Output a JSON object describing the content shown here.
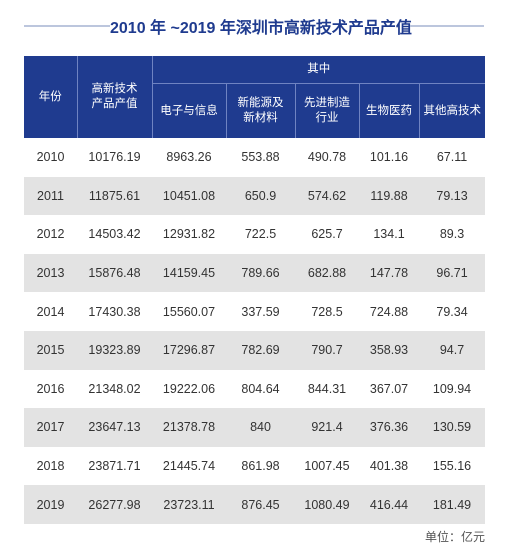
{
  "title": "2010 年 ~2019 年深圳市高新技术产品产值",
  "header": {
    "year": "年份",
    "total": "高新技术\n产品产值",
    "group": "其中",
    "sub": [
      "电子与信息",
      "新能源及\n新材料",
      "先进制造\n行业",
      "生物医药",
      "其他高技术"
    ]
  },
  "rows": [
    {
      "year": "2010",
      "total": "10176.19",
      "v1": "8963.26",
      "v2": "553.88",
      "v3": "490.78",
      "v4": "101.16",
      "v5": "67.11"
    },
    {
      "year": "2011",
      "total": "11875.61",
      "v1": "10451.08",
      "v2": "650.9",
      "v3": "574.62",
      "v4": "119.88",
      "v5": "79.13"
    },
    {
      "year": "2012",
      "total": "14503.42",
      "v1": "12931.82",
      "v2": "722.5",
      "v3": "625.7",
      "v4": "134.1",
      "v5": "89.3"
    },
    {
      "year": "2013",
      "total": "15876.48",
      "v1": "14159.45",
      "v2": "789.66",
      "v3": "682.88",
      "v4": "147.78",
      "v5": "96.71"
    },
    {
      "year": "2014",
      "total": "17430.38",
      "v1": "15560.07",
      "v2": "337.59",
      "v3": "728.5",
      "v4": "724.88",
      "v5": "79.34"
    },
    {
      "year": "2015",
      "total": "19323.89",
      "v1": "17296.87",
      "v2": "782.69",
      "v3": "790.7",
      "v4": "358.93",
      "v5": "94.7"
    },
    {
      "year": "2016",
      "total": "21348.02",
      "v1": "19222.06",
      "v2": "804.64",
      "v3": "844.31",
      "v4": "367.07",
      "v5": "109.94"
    },
    {
      "year": "2017",
      "total": "23647.13",
      "v1": "21378.78",
      "v2": "840",
      "v3": "921.4",
      "v4": "376.36",
      "v5": "130.59"
    },
    {
      "year": "2018",
      "total": "23871.71",
      "v1": "21445.74",
      "v2": "861.98",
      "v3": "1007.45",
      "v4": "401.38",
      "v5": "155.16"
    },
    {
      "year": "2019",
      "total": "26277.98",
      "v1": "23723.11",
      "v2": "876.45",
      "v3": "1080.49",
      "v4": "416.44",
      "v5": "181.49"
    }
  ],
  "unit": "单位：亿元",
  "colors": {
    "header_bg": "#1f3b8f",
    "stripe": "#e3e3e3",
    "title": "#1f3b8f"
  }
}
